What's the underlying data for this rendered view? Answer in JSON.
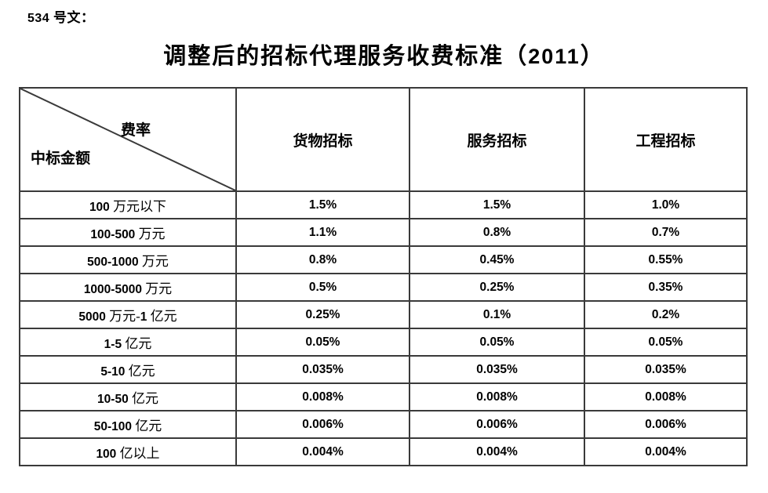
{
  "doc_label": "534 号文：",
  "title": "调整后的招标代理服务收费标准（2011）",
  "table": {
    "corner": {
      "top_right": "费率",
      "bottom_left": "中标金额"
    },
    "columns": [
      "货物招标",
      "服务招标",
      "工程招标"
    ],
    "rows": [
      {
        "label": "100 万元以下",
        "values": [
          "1.5%",
          "1.5%",
          "1.0%"
        ]
      },
      {
        "label": "100-500 万元",
        "values": [
          "1.1%",
          "0.8%",
          "0.7%"
        ]
      },
      {
        "label": "500-1000 万元",
        "values": [
          "0.8%",
          "0.45%",
          "0.55%"
        ]
      },
      {
        "label": "1000-5000 万元",
        "values": [
          "0.5%",
          "0.25%",
          "0.35%"
        ]
      },
      {
        "label": "5000 万元-1 亿元",
        "values": [
          "0.25%",
          "0.1%",
          "0.2%"
        ]
      },
      {
        "label": "1-5 亿元",
        "values": [
          "0.05%",
          "0.05%",
          "0.05%"
        ]
      },
      {
        "label": "5-10 亿元",
        "values": [
          "0.035%",
          "0.035%",
          "0.035%"
        ]
      },
      {
        "label": "10-50 亿元",
        "values": [
          "0.008%",
          "0.008%",
          "0.008%"
        ]
      },
      {
        "label": "50-100 亿元",
        "values": [
          "0.006%",
          "0.006%",
          "0.006%"
        ]
      },
      {
        "label": "100 亿以上",
        "values": [
          "0.004%",
          "0.004%",
          "0.004%"
        ]
      }
    ]
  },
  "colors": {
    "text": "#000000",
    "border": "#3a3a3a",
    "background": "#ffffff"
  }
}
